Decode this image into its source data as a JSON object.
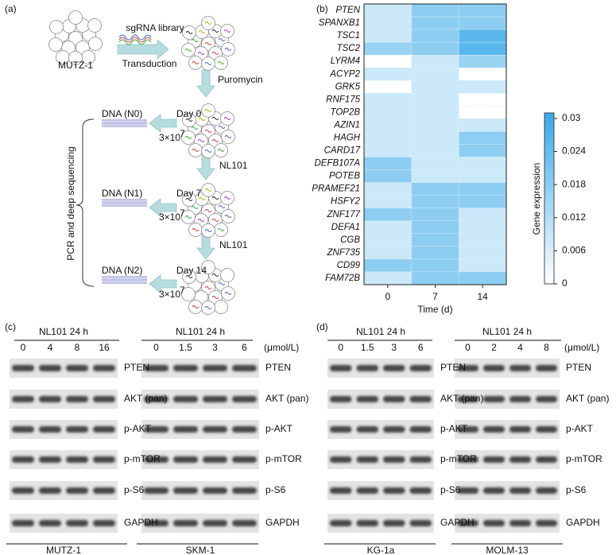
{
  "panel_a": {
    "label": "(a)",
    "start": "MUTZ-1",
    "library": "sgRNA library",
    "transduction": "Transduction",
    "selection": "Puromycin",
    "treatments": [
      "NL101",
      "NL101"
    ],
    "side_label": "PCR and deep sequencing",
    "samples": [
      {
        "dna": "DNA (N0)",
        "day": "Day 0",
        "count": "3×10",
        "exponent": "7"
      },
      {
        "dna": "DNA (N1)",
        "day": "Day 7",
        "count": "3×10",
        "exponent": "7"
      },
      {
        "dna": "DNA (N2)",
        "day": "Day 14",
        "count": "3×10",
        "exponent": "7"
      }
    ]
  },
  "chart_data": {
    "type": "heatmap",
    "panel_label": "(b)",
    "rows": [
      "PTEN",
      "SPANXB1",
      "TSC1",
      "TSC2",
      "LYRM4",
      "ACYP2",
      "GRK5",
      "RNF175",
      "TOP2B",
      "AZIN1",
      "HAGH",
      "CARD17",
      "DEFB107A",
      "POTEB",
      "PRAMEF21",
      "HSFY2",
      "ZNF177",
      "DEFA1",
      "CGB",
      "ZNF735",
      "CD99",
      "FAM72B"
    ],
    "columns": [
      "0",
      "7",
      "14"
    ],
    "x_label": "Time (d)",
    "z": [
      [
        0.008,
        0.018,
        0.018
      ],
      [
        0.008,
        0.018,
        0.018
      ],
      [
        0.008,
        0.018,
        0.026
      ],
      [
        0.016,
        0.018,
        0.026
      ],
      [
        0,
        0.008,
        0.016
      ],
      [
        0.008,
        0.008,
        0
      ],
      [
        0,
        0.008,
        0.008
      ],
      [
        0.008,
        0.008,
        0
      ],
      [
        0.008,
        0.008,
        0
      ],
      [
        0.008,
        0.008,
        0.008
      ],
      [
        0.008,
        0.008,
        0.018
      ],
      [
        0.008,
        0.008,
        0.018
      ],
      [
        0.018,
        0.008,
        0.008
      ],
      [
        0.018,
        0.008,
        0.008
      ],
      [
        0.008,
        0.018,
        0.018
      ],
      [
        0.008,
        0.018,
        0.018
      ],
      [
        0.018,
        0.018,
        0.008
      ],
      [
        0.008,
        0.018,
        0.008
      ],
      [
        0.008,
        0.018,
        0.008
      ],
      [
        0.008,
        0.018,
        0.008
      ],
      [
        0.018,
        0.018,
        0.008
      ],
      [
        0.008,
        0.018,
        0.018
      ]
    ],
    "zlim": [
      0,
      0.031
    ],
    "zticks": [
      0,
      0.006,
      0.012,
      0.018,
      0.024,
      0.03
    ],
    "colorbar_label": "Gene expression",
    "cmap": [
      "#ffffff",
      "#3aa9e8"
    ]
  },
  "panel_c": {
    "label": "(c)",
    "proteins": [
      "PTEN",
      "AKT (pan)",
      "p-AKT",
      "p-mTOR",
      "p-S6",
      "GAPDH"
    ],
    "blots": [
      {
        "treatment": "NL101 24 h",
        "doses": [
          "0",
          "4",
          "8",
          "16"
        ],
        "cell_line": "MUTZ-1"
      },
      {
        "treatment": "NL101 24 h",
        "doses": [
          "0",
          "1.5",
          "3",
          "6"
        ],
        "unit": "(μmol/L)",
        "cell_line": "SKM-1"
      }
    ]
  },
  "panel_d": {
    "label": "(d)",
    "proteins": [
      "PTEN",
      "AKT (pan)",
      "p-AKT",
      "p-mTOR",
      "p-S6",
      "GAPDH"
    ],
    "blots": [
      {
        "treatment": "NL101 24 h",
        "doses": [
          "0",
          "1.5",
          "3",
          "6"
        ],
        "cell_line": "KG-1a"
      },
      {
        "treatment": "NL101 24 h",
        "doses": [
          "0",
          "2",
          "4",
          "8"
        ],
        "unit": "(μmol/L)",
        "cell_line": "MOLM-13"
      }
    ]
  }
}
